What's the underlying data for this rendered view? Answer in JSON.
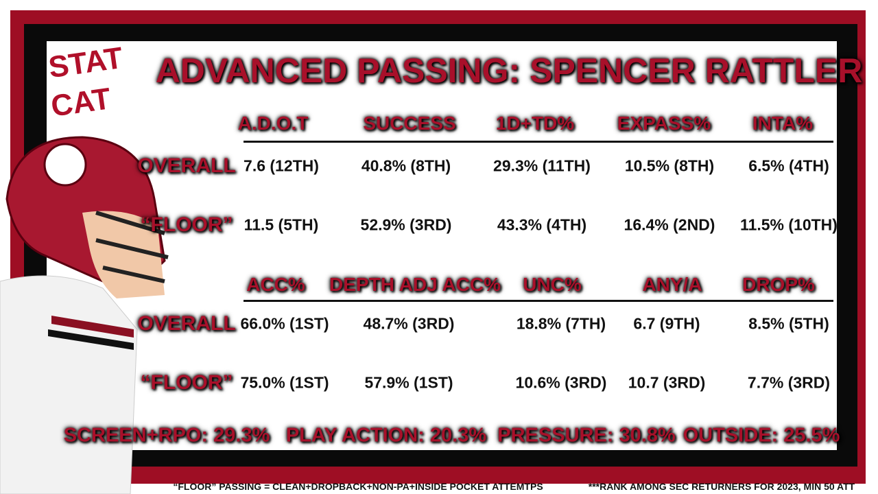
{
  "logo": {
    "line1": "STAT",
    "line2": "CAT"
  },
  "title": "ADVANCED PASSING: SPENCER RATTLER",
  "sections": [
    {
      "headers": [
        "A.D.O.T",
        "SUCCESS",
        "1D+TD%",
        "EXPASS%",
        "INTA%"
      ],
      "rows": [
        {
          "label": "OVERALL",
          "cells": [
            "7.6  (12TH)",
            "40.8% (8TH)",
            "29.3% (11TH)",
            "10.5% (8TH)",
            "6.5% (4TH)"
          ]
        },
        {
          "label": "“FLOOR”",
          "cells": [
            "11.5 (5TH)",
            "52.9% (3RD)",
            "43.3% (4TH)",
            "16.4% (2ND)",
            "11.5% (10TH)"
          ]
        }
      ]
    },
    {
      "headers": [
        "ACC%",
        "DEPTH ADJ ACC%",
        "UNC%",
        "ANY/A",
        "DROP%"
      ],
      "rows": [
        {
          "label": "OVERALL",
          "cells": [
            "66.0% (1ST)",
            "48.7% (3RD)",
            "18.8% (7TH)",
            "6.7 (9TH)",
            "8.5% (5TH)"
          ]
        },
        {
          "label": "“FLOOR”",
          "cells": [
            "75.0% (1ST)",
            "57.9% (1ST)",
            "10.6% (3RD)",
            "10.7 (3RD)",
            "7.7% (3RD)"
          ]
        }
      ]
    }
  ],
  "splits": [
    "SCREEN+RPO: 29.3%",
    "PLAY ACTION: 20.3%",
    "PRESSURE: 30.8%",
    "OUTSIDE: 25.5%"
  ],
  "footnotes": [
    "“FLOOR” PASSING = CLEAN+DROPBACK+NON-PA+INSIDE POCKET ATTEMTPS",
    "***RANK AMONG SEC RETURNERS FOR 2023, MIN 50 ATT"
  ]
}
